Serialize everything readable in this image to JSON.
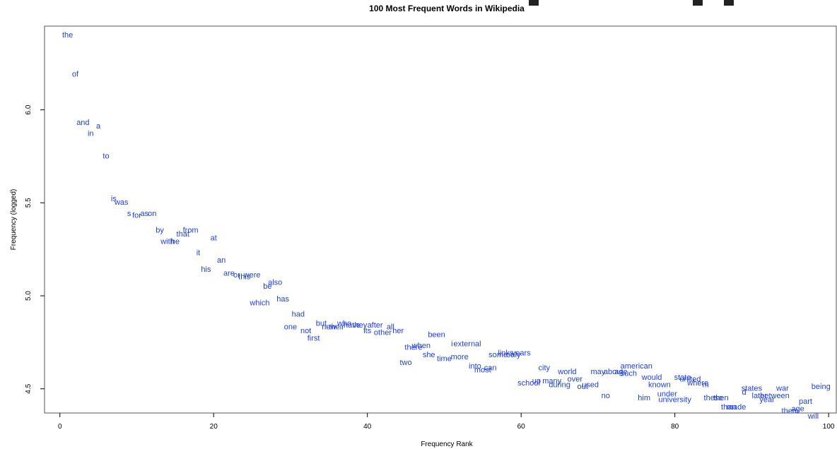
{
  "chart_data": {
    "type": "scatter",
    "title": "100 Most Frequent Words in Wikipedia",
    "xlabel": "Frequency Rank",
    "ylabel": "Frequency (logged)",
    "xlim": [
      -2,
      101
    ],
    "ylim": [
      4.37,
      6.45
    ],
    "xticks": [
      "0",
      "20",
      "40",
      "60",
      "80",
      "100"
    ],
    "yticks": [
      "4.5",
      "5.0",
      "5.5",
      "6.0"
    ],
    "points": [
      {
        "x": 1,
        "y": 6.4,
        "label": "the"
      },
      {
        "x": 2,
        "y": 6.19,
        "label": "of"
      },
      {
        "x": 3,
        "y": 5.93,
        "label": "and"
      },
      {
        "x": 4,
        "y": 5.87,
        "label": "in"
      },
      {
        "x": 5,
        "y": 5.91,
        "label": "a"
      },
      {
        "x": 6,
        "y": 5.75,
        "label": "to"
      },
      {
        "x": 7,
        "y": 5.52,
        "label": "is"
      },
      {
        "x": 8,
        "y": 5.5,
        "label": "was"
      },
      {
        "x": 9,
        "y": 5.44,
        "label": "s"
      },
      {
        "x": 10,
        "y": 5.43,
        "label": "for"
      },
      {
        "x": 11,
        "y": 5.44,
        "label": "as"
      },
      {
        "x": 12,
        "y": 5.44,
        "label": "on"
      },
      {
        "x": 13,
        "y": 5.35,
        "label": "by"
      },
      {
        "x": 14,
        "y": 5.29,
        "label": "with"
      },
      {
        "x": 15,
        "y": 5.29,
        "label": "he"
      },
      {
        "x": 16,
        "y": 5.33,
        "label": "that"
      },
      {
        "x": 17,
        "y": 5.35,
        "label": "from"
      },
      {
        "x": 18,
        "y": 5.23,
        "label": "it"
      },
      {
        "x": 19,
        "y": 5.14,
        "label": "his"
      },
      {
        "x": 20,
        "y": 5.31,
        "label": "at"
      },
      {
        "x": 21,
        "y": 5.19,
        "label": "an"
      },
      {
        "x": 22,
        "y": 5.12,
        "label": "are"
      },
      {
        "x": 23,
        "y": 5.11,
        "label": "or"
      },
      {
        "x": 24,
        "y": 5.1,
        "label": "this"
      },
      {
        "x": 25,
        "y": 5.11,
        "label": "were"
      },
      {
        "x": 26,
        "y": 4.96,
        "label": "which"
      },
      {
        "x": 27,
        "y": 5.05,
        "label": "be"
      },
      {
        "x": 28,
        "y": 5.07,
        "label": "also"
      },
      {
        "x": 29,
        "y": 4.98,
        "label": "has"
      },
      {
        "x": 30,
        "y": 4.83,
        "label": "one"
      },
      {
        "x": 31,
        "y": 4.9,
        "label": "had"
      },
      {
        "x": 32,
        "y": 4.81,
        "label": "not"
      },
      {
        "x": 33,
        "y": 4.77,
        "label": "first"
      },
      {
        "x": 34,
        "y": 4.85,
        "label": "but"
      },
      {
        "x": 35,
        "y": 4.83,
        "label": "new"
      },
      {
        "x": 36,
        "y": 4.83,
        "label": "their"
      },
      {
        "x": 37,
        "y": 4.85,
        "label": "who"
      },
      {
        "x": 38,
        "y": 4.84,
        "label": "have"
      },
      {
        "x": 39,
        "y": 4.84,
        "label": "they"
      },
      {
        "x": 40,
        "y": 4.81,
        "label": "its"
      },
      {
        "x": 41,
        "y": 4.84,
        "label": "after"
      },
      {
        "x": 42,
        "y": 4.8,
        "label": "other"
      },
      {
        "x": 43,
        "y": 4.83,
        "label": "all"
      },
      {
        "x": 44,
        "y": 4.81,
        "label": "her"
      },
      {
        "x": 45,
        "y": 4.64,
        "label": "two"
      },
      {
        "x": 46,
        "y": 4.72,
        "label": "there"
      },
      {
        "x": 47,
        "y": 4.73,
        "label": "when"
      },
      {
        "x": 48,
        "y": 4.68,
        "label": "she"
      },
      {
        "x": 49,
        "y": 4.79,
        "label": "been"
      },
      {
        "x": 50,
        "y": 4.66,
        "label": "time"
      },
      {
        "x": 51,
        "y": 4.74,
        "label": "i"
      },
      {
        "x": 52,
        "y": 4.67,
        "label": "more"
      },
      {
        "x": 53,
        "y": 4.74,
        "label": "external"
      },
      {
        "x": 54,
        "y": 4.62,
        "label": "into"
      },
      {
        "x": 55,
        "y": 4.6,
        "label": "most"
      },
      {
        "x": 56,
        "y": 4.61,
        "label": "can"
      },
      {
        "x": 57,
        "y": 4.68,
        "label": "some"
      },
      {
        "x": 58,
        "y": 4.69,
        "label": "links"
      },
      {
        "x": 59,
        "y": 4.68,
        "label": "only"
      },
      {
        "x": 60,
        "y": 4.69,
        "label": "years"
      },
      {
        "x": 61,
        "y": 4.53,
        "label": "school"
      },
      {
        "x": 62,
        "y": 4.54,
        "label": "up"
      },
      {
        "x": 63,
        "y": 4.61,
        "label": "city"
      },
      {
        "x": 64,
        "y": 4.54,
        "label": "many"
      },
      {
        "x": 65,
        "y": 4.52,
        "label": "during"
      },
      {
        "x": 66,
        "y": 4.59,
        "label": "world"
      },
      {
        "x": 67,
        "y": 4.55,
        "label": "over"
      },
      {
        "x": 68,
        "y": 4.51,
        "label": "out"
      },
      {
        "x": 69,
        "y": 4.52,
        "label": "used"
      },
      {
        "x": 70,
        "y": 4.59,
        "label": "may"
      },
      {
        "x": 71,
        "y": 4.46,
        "label": "no"
      },
      {
        "x": 72,
        "y": 4.59,
        "label": "about"
      },
      {
        "x": 73,
        "y": 4.59,
        "label": "age"
      },
      {
        "x": 74,
        "y": 4.58,
        "label": "such"
      },
      {
        "x": 75,
        "y": 4.62,
        "label": "american"
      },
      {
        "x": 76,
        "y": 4.45,
        "label": "him"
      },
      {
        "x": 77,
        "y": 4.56,
        "label": "would"
      },
      {
        "x": 78,
        "y": 4.52,
        "label": "known"
      },
      {
        "x": 79,
        "y": 4.47,
        "label": "under"
      },
      {
        "x": 80,
        "y": 4.44,
        "label": "university"
      },
      {
        "x": 81,
        "y": 4.56,
        "label": "state"
      },
      {
        "x": 82,
        "y": 4.55,
        "label": "united"
      },
      {
        "x": 83,
        "y": 4.53,
        "label": "where"
      },
      {
        "x": 84,
        "y": 4.52,
        "label": "m"
      },
      {
        "x": 85,
        "y": 4.45,
        "label": "these"
      },
      {
        "x": 86,
        "y": 4.45,
        "label": "then"
      },
      {
        "x": 87,
        "y": 4.4,
        "label": "than"
      },
      {
        "x": 88,
        "y": 4.4,
        "label": "made"
      },
      {
        "x": 89,
        "y": 4.48,
        "label": "d"
      },
      {
        "x": 90,
        "y": 4.5,
        "label": "states"
      },
      {
        "x": 91,
        "y": 4.46,
        "label": "later"
      },
      {
        "x": 92,
        "y": 4.44,
        "label": "year"
      },
      {
        "x": 93,
        "y": 4.46,
        "label": "between"
      },
      {
        "x": 94,
        "y": 4.5,
        "label": "war"
      },
      {
        "x": 95,
        "y": 4.38,
        "label": "them"
      },
      {
        "x": 96,
        "y": 4.39,
        "label": "age"
      },
      {
        "x": 97,
        "y": 4.43,
        "label": "part"
      },
      {
        "x": 98,
        "y": 4.35,
        "label": "will"
      },
      {
        "x": 99,
        "y": 4.51,
        "label": "being"
      }
    ],
    "text_color": "#1d3fe6",
    "grid": false,
    "legend": "none"
  }
}
